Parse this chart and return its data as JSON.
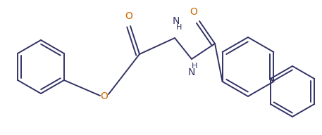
{
  "bg_color": "#ffffff",
  "line_color": "#333366",
  "atom_color": "#cc6600",
  "line_width": 1.4,
  "font_size": 9,
  "fig_width": 4.57,
  "fig_height": 1.92,
  "dpi": 100,
  "xlim": [
    0,
    457
  ],
  "ylim": [
    0,
    192
  ]
}
